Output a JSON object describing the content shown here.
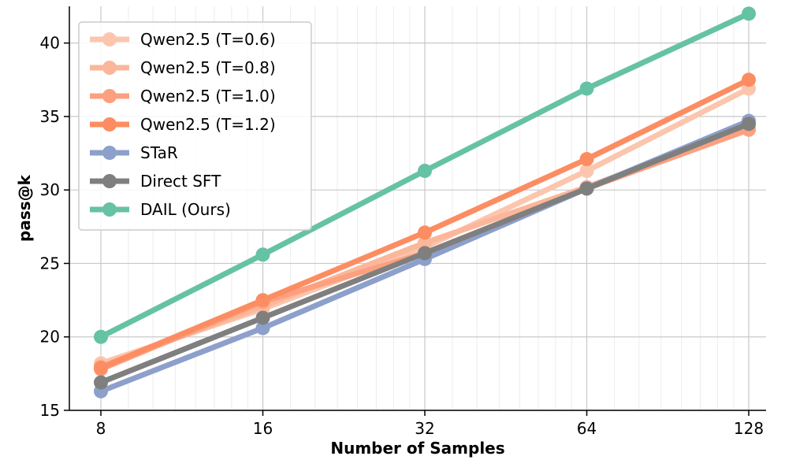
{
  "chart_data": {
    "type": "line",
    "title": "",
    "xlabel": "Number of Samples",
    "ylabel": "pass@k",
    "x_scale": "log2",
    "x": [
      8,
      16,
      32,
      64,
      128
    ],
    "x_tick_labels": [
      "8",
      "16",
      "32",
      "64",
      "128"
    ],
    "ylim": [
      15,
      42.5
    ],
    "y_ticks": [
      15,
      20,
      25,
      30,
      35,
      40
    ],
    "y_tick_labels": [
      "15",
      "20",
      "25",
      "30",
      "35",
      "40"
    ],
    "grid": true,
    "legend_position": "top-left",
    "series": [
      {
        "name": "Qwen2.5 (T=0.6)",
        "color": "#fcc5ad",
        "values": [
          18.2,
          21.9,
          26.1,
          31.3,
          36.9
        ]
      },
      {
        "name": "Qwen2.5 (T=0.8)",
        "color": "#fcb69a",
        "values": [
          18.0,
          22.1,
          26.4,
          30.2,
          34.3
        ]
      },
      {
        "name": "Qwen2.5 (T=1.0)",
        "color": "#fca07f",
        "values": [
          17.8,
          22.4,
          25.7,
          30.1,
          34.1
        ]
      },
      {
        "name": "Qwen2.5 (T=1.2)",
        "color": "#fc8d62",
        "values": [
          17.9,
          22.5,
          27.1,
          32.1,
          37.5
        ]
      },
      {
        "name": "STaR",
        "color": "#8da0cb",
        "values": [
          16.3,
          20.6,
          25.3,
          30.1,
          34.7
        ]
      },
      {
        "name": "Direct SFT",
        "color": "#7f7f7f",
        "values": [
          16.9,
          21.3,
          25.7,
          30.1,
          34.5
        ]
      },
      {
        "name": "DAIL (Ours)",
        "color": "#66c2a5",
        "values": [
          20.0,
          25.6,
          31.3,
          36.9,
          42.0
        ]
      }
    ]
  }
}
